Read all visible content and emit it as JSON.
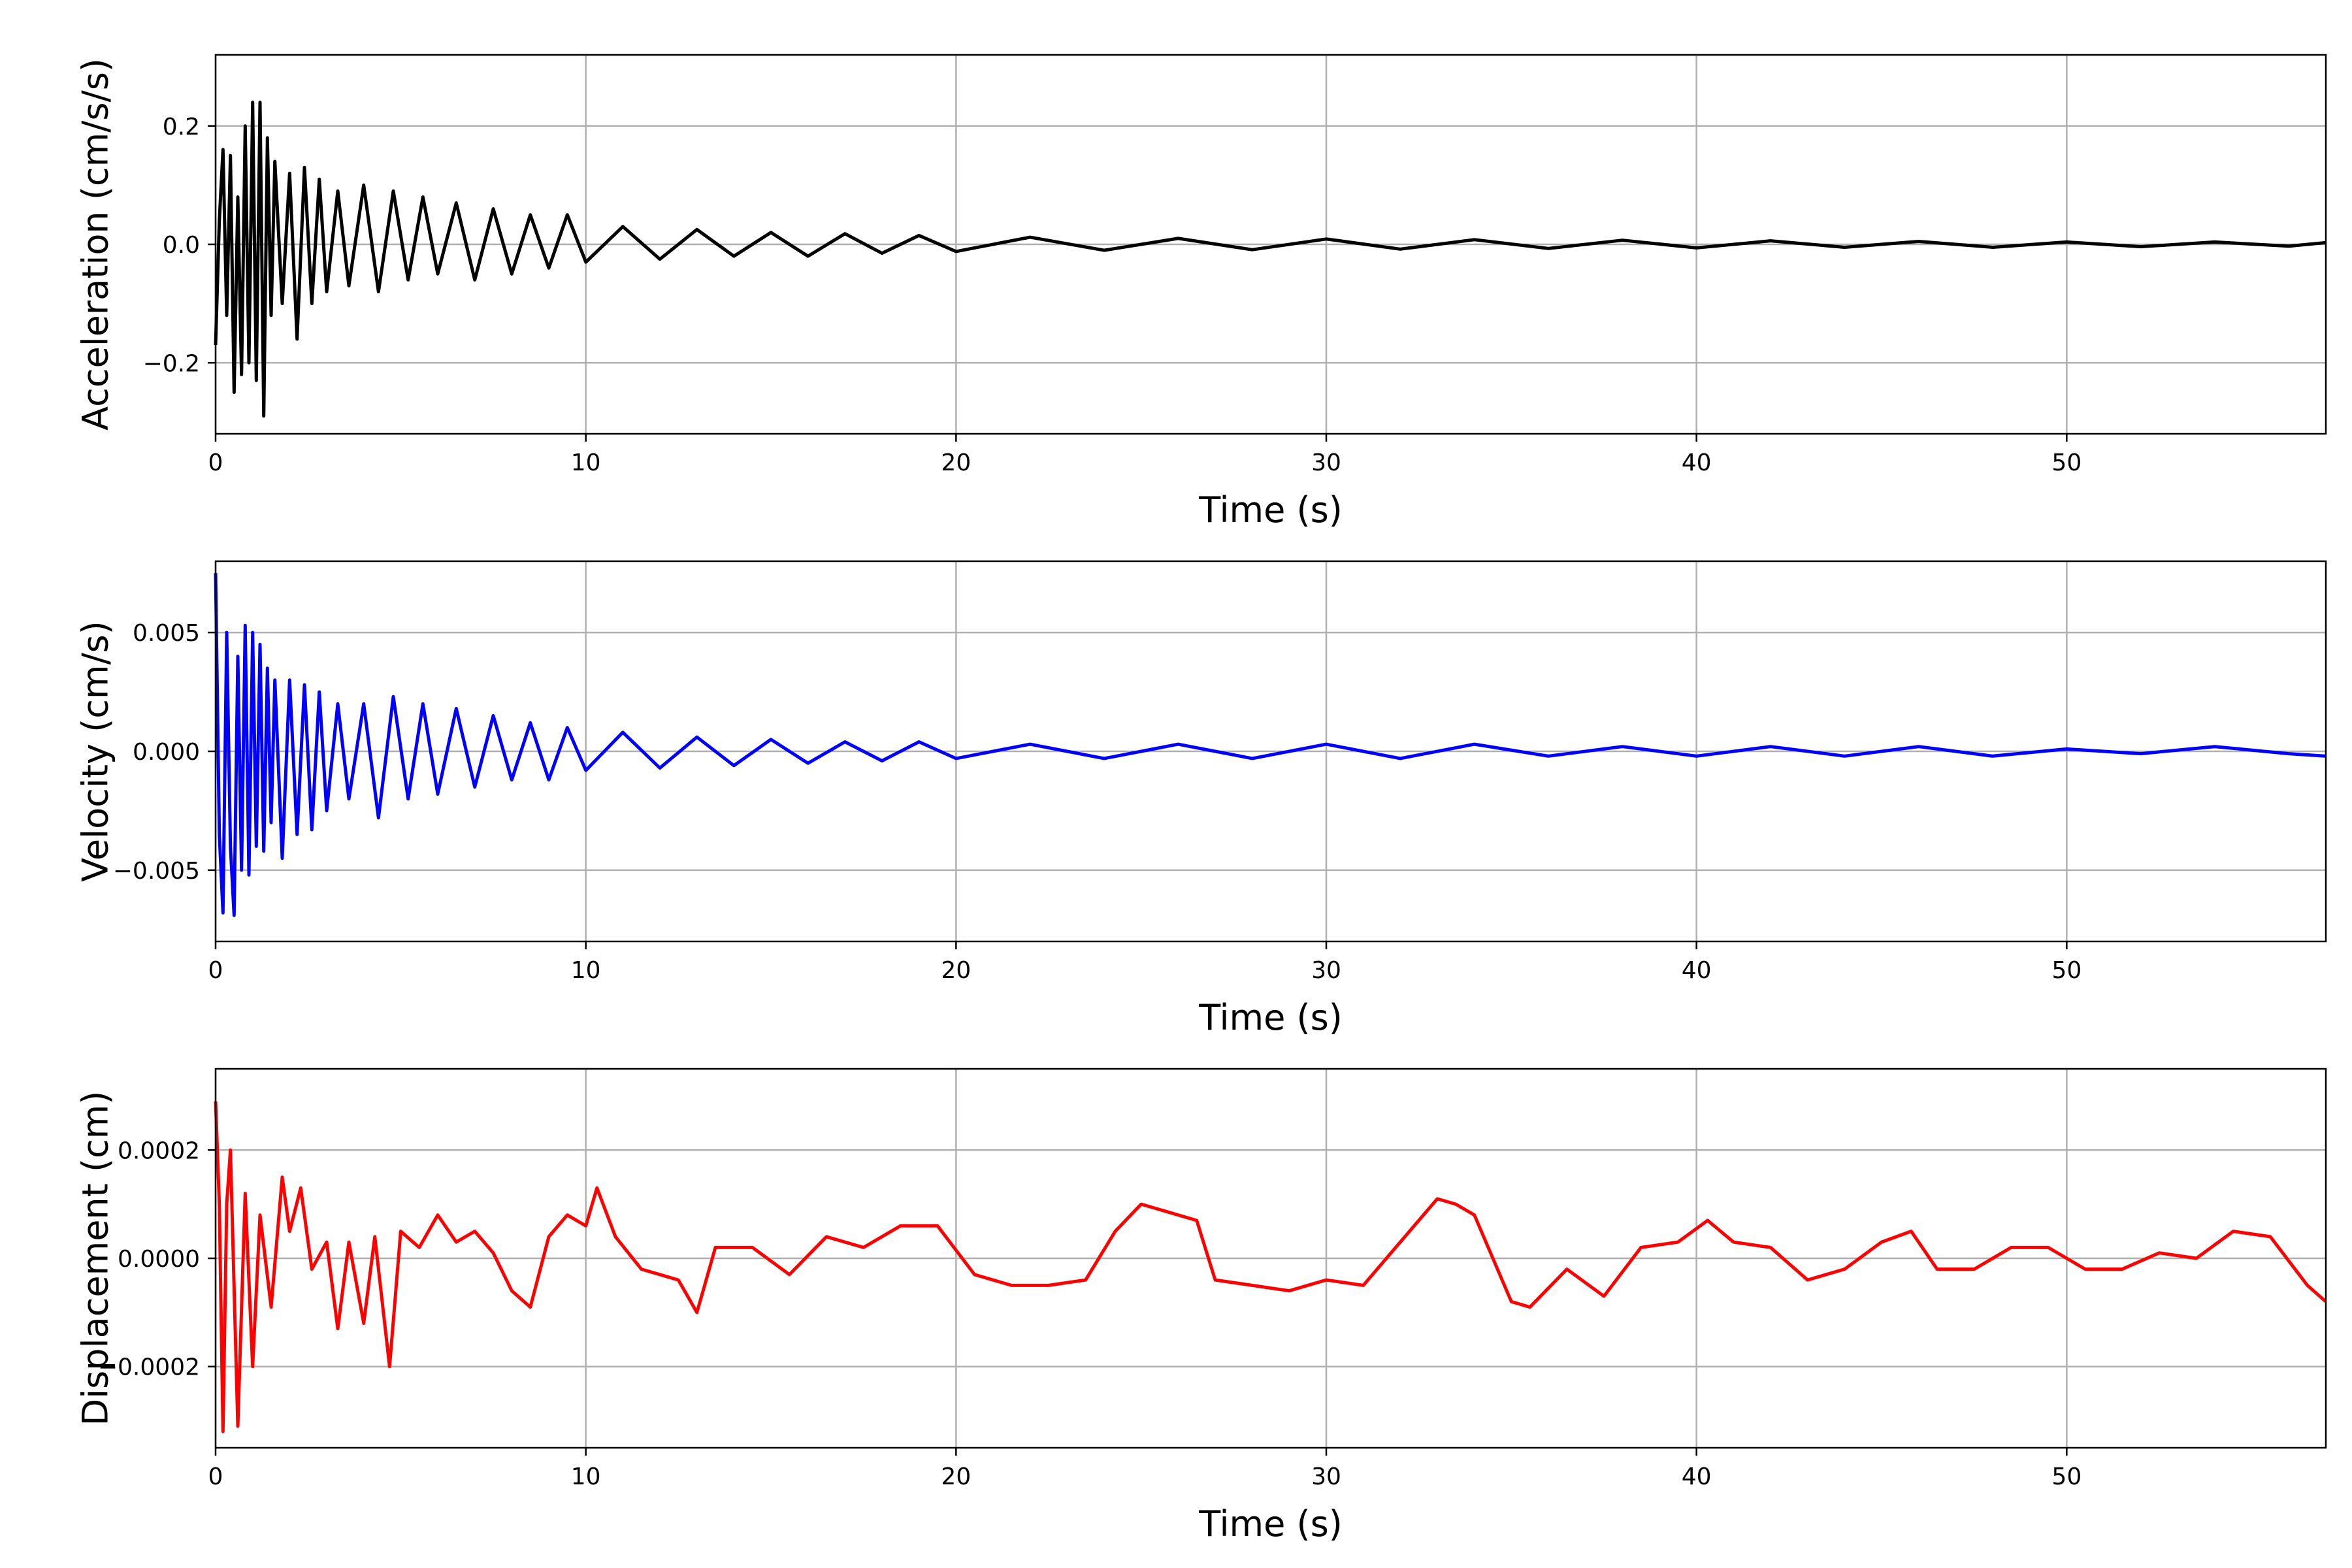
{
  "chart_data": [
    {
      "type": "line",
      "xlabel": "Time (s)",
      "ylabel": "Acceleration (cm/s/s)",
      "xlim": [
        0,
        57
      ],
      "ylim": [
        -0.32,
        0.32
      ],
      "xticks": [
        0,
        10,
        20,
        30,
        40,
        50
      ],
      "xtick_labels": [
        "0",
        "10",
        "20",
        "30",
        "40",
        "50"
      ],
      "yticks": [
        -0.2,
        0.0,
        0.2
      ],
      "ytick_labels": [
        "−0.2",
        "0.0",
        "0.2"
      ],
      "grid": true,
      "color": "#000000",
      "series": [
        {
          "x": [
            0,
            0.1,
            0.2,
            0.3,
            0.4,
            0.5,
            0.6,
            0.7,
            0.8,
            0.9,
            1.0,
            1.1,
            1.2,
            1.3,
            1.4,
            1.5,
            1.6,
            1.8,
            2.0,
            2.2,
            2.4,
            2.6,
            2.8,
            3.0,
            3.3,
            3.6,
            4.0,
            4.4,
            4.8,
            5.2,
            5.6,
            6.0,
            6.5,
            7.0,
            7.5,
            8.0,
            8.5,
            9.0,
            9.5,
            10.0,
            11,
            12,
            13,
            14,
            15,
            16,
            17,
            18,
            19,
            20,
            22,
            24,
            26,
            28,
            30,
            32,
            34,
            36,
            38,
            40,
            42,
            44,
            46,
            48,
            50,
            52,
            54,
            56,
            57
          ],
          "y": [
            -0.17,
            0.04,
            0.16,
            -0.12,
            0.15,
            -0.25,
            0.08,
            -0.22,
            0.2,
            -0.2,
            0.24,
            -0.23,
            0.24,
            -0.29,
            0.18,
            -0.12,
            0.14,
            -0.1,
            0.12,
            -0.16,
            0.13,
            -0.1,
            0.11,
            -0.08,
            0.09,
            -0.07,
            0.1,
            -0.08,
            0.09,
            -0.06,
            0.08,
            -0.05,
            0.07,
            -0.06,
            0.06,
            -0.05,
            0.05,
            -0.04,
            0.05,
            -0.03,
            0.03,
            -0.025,
            0.025,
            -0.02,
            0.02,
            -0.02,
            0.018,
            -0.015,
            0.015,
            -0.012,
            0.012,
            -0.01,
            0.01,
            -0.009,
            0.009,
            -0.008,
            0.008,
            -0.007,
            0.007,
            -0.006,
            0.006,
            -0.005,
            0.005,
            -0.005,
            0.004,
            -0.004,
            0.004,
            -0.003,
            0.003
          ]
        }
      ]
    },
    {
      "type": "line",
      "xlabel": "Time (s)",
      "ylabel": "Velocity (cm/s)",
      "xlim": [
        0,
        57
      ],
      "ylim": [
        -0.008,
        0.008
      ],
      "xticks": [
        0,
        10,
        20,
        30,
        40,
        50
      ],
      "xtick_labels": [
        "0",
        "10",
        "20",
        "30",
        "40",
        "50"
      ],
      "yticks": [
        -0.005,
        0.0,
        0.005
      ],
      "ytick_labels": [
        "−0.005",
        "0.000",
        "0.005"
      ],
      "grid": true,
      "color": "#0000ff",
      "series": [
        {
          "x": [
            0,
            0.1,
            0.2,
            0.3,
            0.4,
            0.5,
            0.6,
            0.7,
            0.8,
            0.9,
            1.0,
            1.1,
            1.2,
            1.3,
            1.4,
            1.5,
            1.6,
            1.8,
            2.0,
            2.2,
            2.4,
            2.6,
            2.8,
            3.0,
            3.3,
            3.6,
            4.0,
            4.4,
            4.8,
            5.2,
            5.6,
            6.0,
            6.5,
            7.0,
            7.5,
            8.0,
            8.5,
            9.0,
            9.5,
            10.0,
            11,
            12,
            13,
            14,
            15,
            16,
            17,
            18,
            19,
            20,
            22,
            24,
            26,
            28,
            30,
            32,
            34,
            36,
            38,
            40,
            42,
            44,
            46,
            48,
            50,
            52,
            54,
            56,
            57
          ],
          "y": [
            0.0075,
            -0.0035,
            -0.0068,
            0.005,
            -0.004,
            -0.0069,
            0.004,
            -0.005,
            0.0053,
            -0.0052,
            0.005,
            -0.004,
            0.0045,
            -0.0042,
            0.0035,
            -0.003,
            0.003,
            -0.0045,
            0.003,
            -0.0035,
            0.0028,
            -0.0033,
            0.0025,
            -0.0025,
            0.002,
            -0.002,
            0.002,
            -0.0028,
            0.0023,
            -0.002,
            0.002,
            -0.0018,
            0.0018,
            -0.0015,
            0.0015,
            -0.0012,
            0.0012,
            -0.0012,
            0.001,
            -0.0008,
            0.0008,
            -0.0007,
            0.0006,
            -0.0006,
            0.0005,
            -0.0005,
            0.0004,
            -0.0004,
            0.0004,
            -0.0003,
            0.0003,
            -0.0003,
            0.0003,
            -0.0003,
            0.0003,
            -0.0003,
            0.0003,
            -0.0002,
            0.0002,
            -0.0002,
            0.0002,
            -0.0002,
            0.0002,
            -0.0002,
            0.0001,
            -0.0001,
            0.0002,
            -0.0001,
            -0.0002
          ]
        }
      ]
    },
    {
      "type": "line",
      "xlabel": "Time (s)",
      "ylabel": "Displacement (cm)",
      "xlim": [
        0,
        57
      ],
      "ylim": [
        -0.00035,
        0.00035
      ],
      "xticks": [
        0,
        10,
        20,
        30,
        40,
        50
      ],
      "xtick_labels": [
        "0",
        "10",
        "20",
        "30",
        "40",
        "50"
      ],
      "yticks": [
        -0.0002,
        0.0,
        0.0002
      ],
      "ytick_labels": [
        "−0.0002",
        "0.0000",
        "0.0002"
      ],
      "grid": true,
      "color": "#ff0000",
      "series": [
        {
          "x": [
            0,
            0.1,
            0.2,
            0.3,
            0.4,
            0.6,
            0.8,
            1.0,
            1.2,
            1.5,
            1.8,
            2.0,
            2.3,
            2.6,
            3.0,
            3.3,
            3.6,
            4.0,
            4.3,
            4.7,
            5.0,
            5.5,
            6.0,
            6.5,
            7.0,
            7.5,
            8.0,
            8.5,
            9.0,
            9.5,
            10.0,
            10.3,
            10.8,
            11.5,
            12.5,
            13.0,
            13.5,
            14.5,
            15.5,
            16.5,
            17.5,
            18.5,
            19.5,
            20.5,
            21.5,
            22.5,
            23.5,
            24.3,
            25.0,
            25.5,
            26.5,
            27.0,
            28.0,
            29.0,
            30.0,
            31.0,
            32.0,
            33.0,
            33.5,
            34.0,
            35.0,
            35.5,
            36.5,
            37.5,
            38.5,
            39.5,
            40.3,
            41.0,
            42.0,
            43.0,
            44.0,
            45.0,
            45.8,
            46.5,
            47.5,
            48.5,
            49.5,
            50.5,
            51.5,
            52.5,
            53.5,
            54.5,
            55.5,
            56.5,
            57
          ],
          "y": [
            0.00029,
            0.0001,
            -0.00032,
            0.0001,
            0.0002,
            -0.00031,
            0.00012,
            -0.0002,
            8e-05,
            -9e-05,
            0.00015,
            5e-05,
            0.00013,
            -2e-05,
            3e-05,
            -0.00013,
            3e-05,
            -0.00012,
            4e-05,
            -0.0002,
            5e-05,
            2e-05,
            8e-05,
            3e-05,
            5e-05,
            1e-05,
            -6e-05,
            -9e-05,
            4e-05,
            8e-05,
            6e-05,
            0.00013,
            4e-05,
            -2e-05,
            -4e-05,
            -0.0001,
            2e-05,
            2e-05,
            -3e-05,
            4e-05,
            2e-05,
            6e-05,
            6e-05,
            -3e-05,
            -5e-05,
            -5e-05,
            -4e-05,
            5e-05,
            0.0001,
            9e-05,
            7e-05,
            -4e-05,
            -5e-05,
            -6e-05,
            -4e-05,
            -5e-05,
            3e-05,
            0.00011,
            0.0001,
            8e-05,
            -8e-05,
            -9e-05,
            -2e-05,
            -7e-05,
            2e-05,
            3e-05,
            7e-05,
            3e-05,
            2e-05,
            -4e-05,
            -2e-05,
            3e-05,
            5e-05,
            -2e-05,
            -2e-05,
            2e-05,
            2e-05,
            -2e-05,
            -2e-05,
            1e-05,
            0.0,
            5e-05,
            4e-05,
            -5e-05,
            -8e-05
          ]
        }
      ]
    }
  ]
}
